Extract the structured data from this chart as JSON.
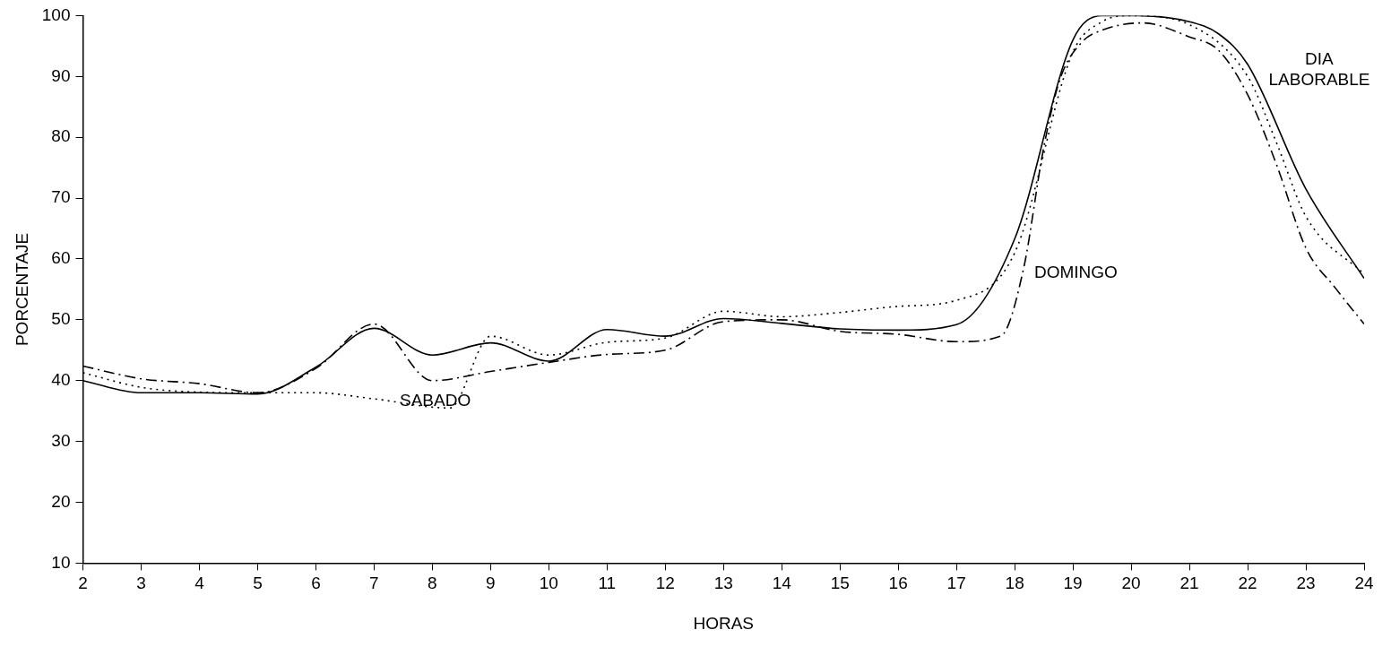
{
  "chart_data": {
    "type": "line",
    "xlabel": "HORAS",
    "ylabel": "PORCENTAJE",
    "xlim": [
      2,
      24
    ],
    "xticks": [
      2,
      3,
      4,
      5,
      6,
      7,
      8,
      9,
      10,
      11,
      12,
      13,
      14,
      15,
      16,
      17,
      18,
      19,
      20,
      21,
      22,
      23,
      24
    ],
    "ylim": [
      10,
      100
    ],
    "yticks": [
      10,
      20,
      30,
      40,
      50,
      60,
      70,
      80,
      90,
      100
    ],
    "grid": false,
    "legend": false,
    "marker": "none",
    "series": [
      {
        "name": "DIA LABORABLE",
        "color": "#000000",
        "line_style": "solid",
        "x": [
          2,
          3,
          4,
          5,
          6,
          7,
          8,
          9,
          10,
          11,
          12,
          13,
          14,
          15,
          16,
          17,
          18,
          19,
          19.5,
          20,
          21,
          21.5,
          22,
          23,
          24
        ],
        "values": [
          40,
          38,
          38,
          37.8,
          42.2,
          48.6,
          44.2,
          46.2,
          43.2,
          48.4,
          47.3,
          50.2,
          49.4,
          48.5,
          48.3,
          49.2,
          63.3,
          96,
          100,
          100,
          99,
          97,
          92,
          71.5,
          56.8
        ]
      },
      {
        "name": "SABADO",
        "color": "#000000",
        "line_style": "dotted",
        "x": [
          2,
          3,
          4,
          5,
          6,
          7,
          8.3,
          9,
          10,
          11,
          12,
          13,
          14,
          15,
          16,
          17,
          18,
          19,
          19.5,
          20,
          21,
          22,
          22.5,
          23,
          24
        ],
        "values": [
          41.3,
          38.9,
          38.1,
          38,
          38,
          37,
          35.5,
          47.3,
          44.2,
          46.3,
          47,
          51.4,
          50.5,
          51.2,
          52.2,
          53.2,
          61,
          94,
          99,
          100,
          98.5,
          90,
          79,
          67,
          57.5
        ]
      },
      {
        "name": "DOMINGO",
        "color": "#000000",
        "line_style": "dashed",
        "x": [
          2,
          3,
          4,
          5,
          6,
          7,
          8,
          9,
          10,
          11,
          12,
          13,
          14,
          15,
          16,
          17,
          17.76,
          18.15,
          18.5,
          18.78,
          19.15,
          19.5,
          20.2,
          21,
          21.5,
          22,
          22.5,
          23,
          23.5,
          24
        ],
        "values": [
          42.4,
          40.3,
          39.5,
          38,
          42,
          49.3,
          40,
          41.5,
          43,
          44.3,
          45,
          49.7,
          50,
          48.1,
          47.6,
          46.4,
          47.3,
          58.3,
          78.4,
          89.6,
          95.6,
          97.6,
          98.8,
          96.5,
          94.3,
          87,
          75.4,
          61.8,
          55.3,
          49.3
        ]
      }
    ]
  }
}
